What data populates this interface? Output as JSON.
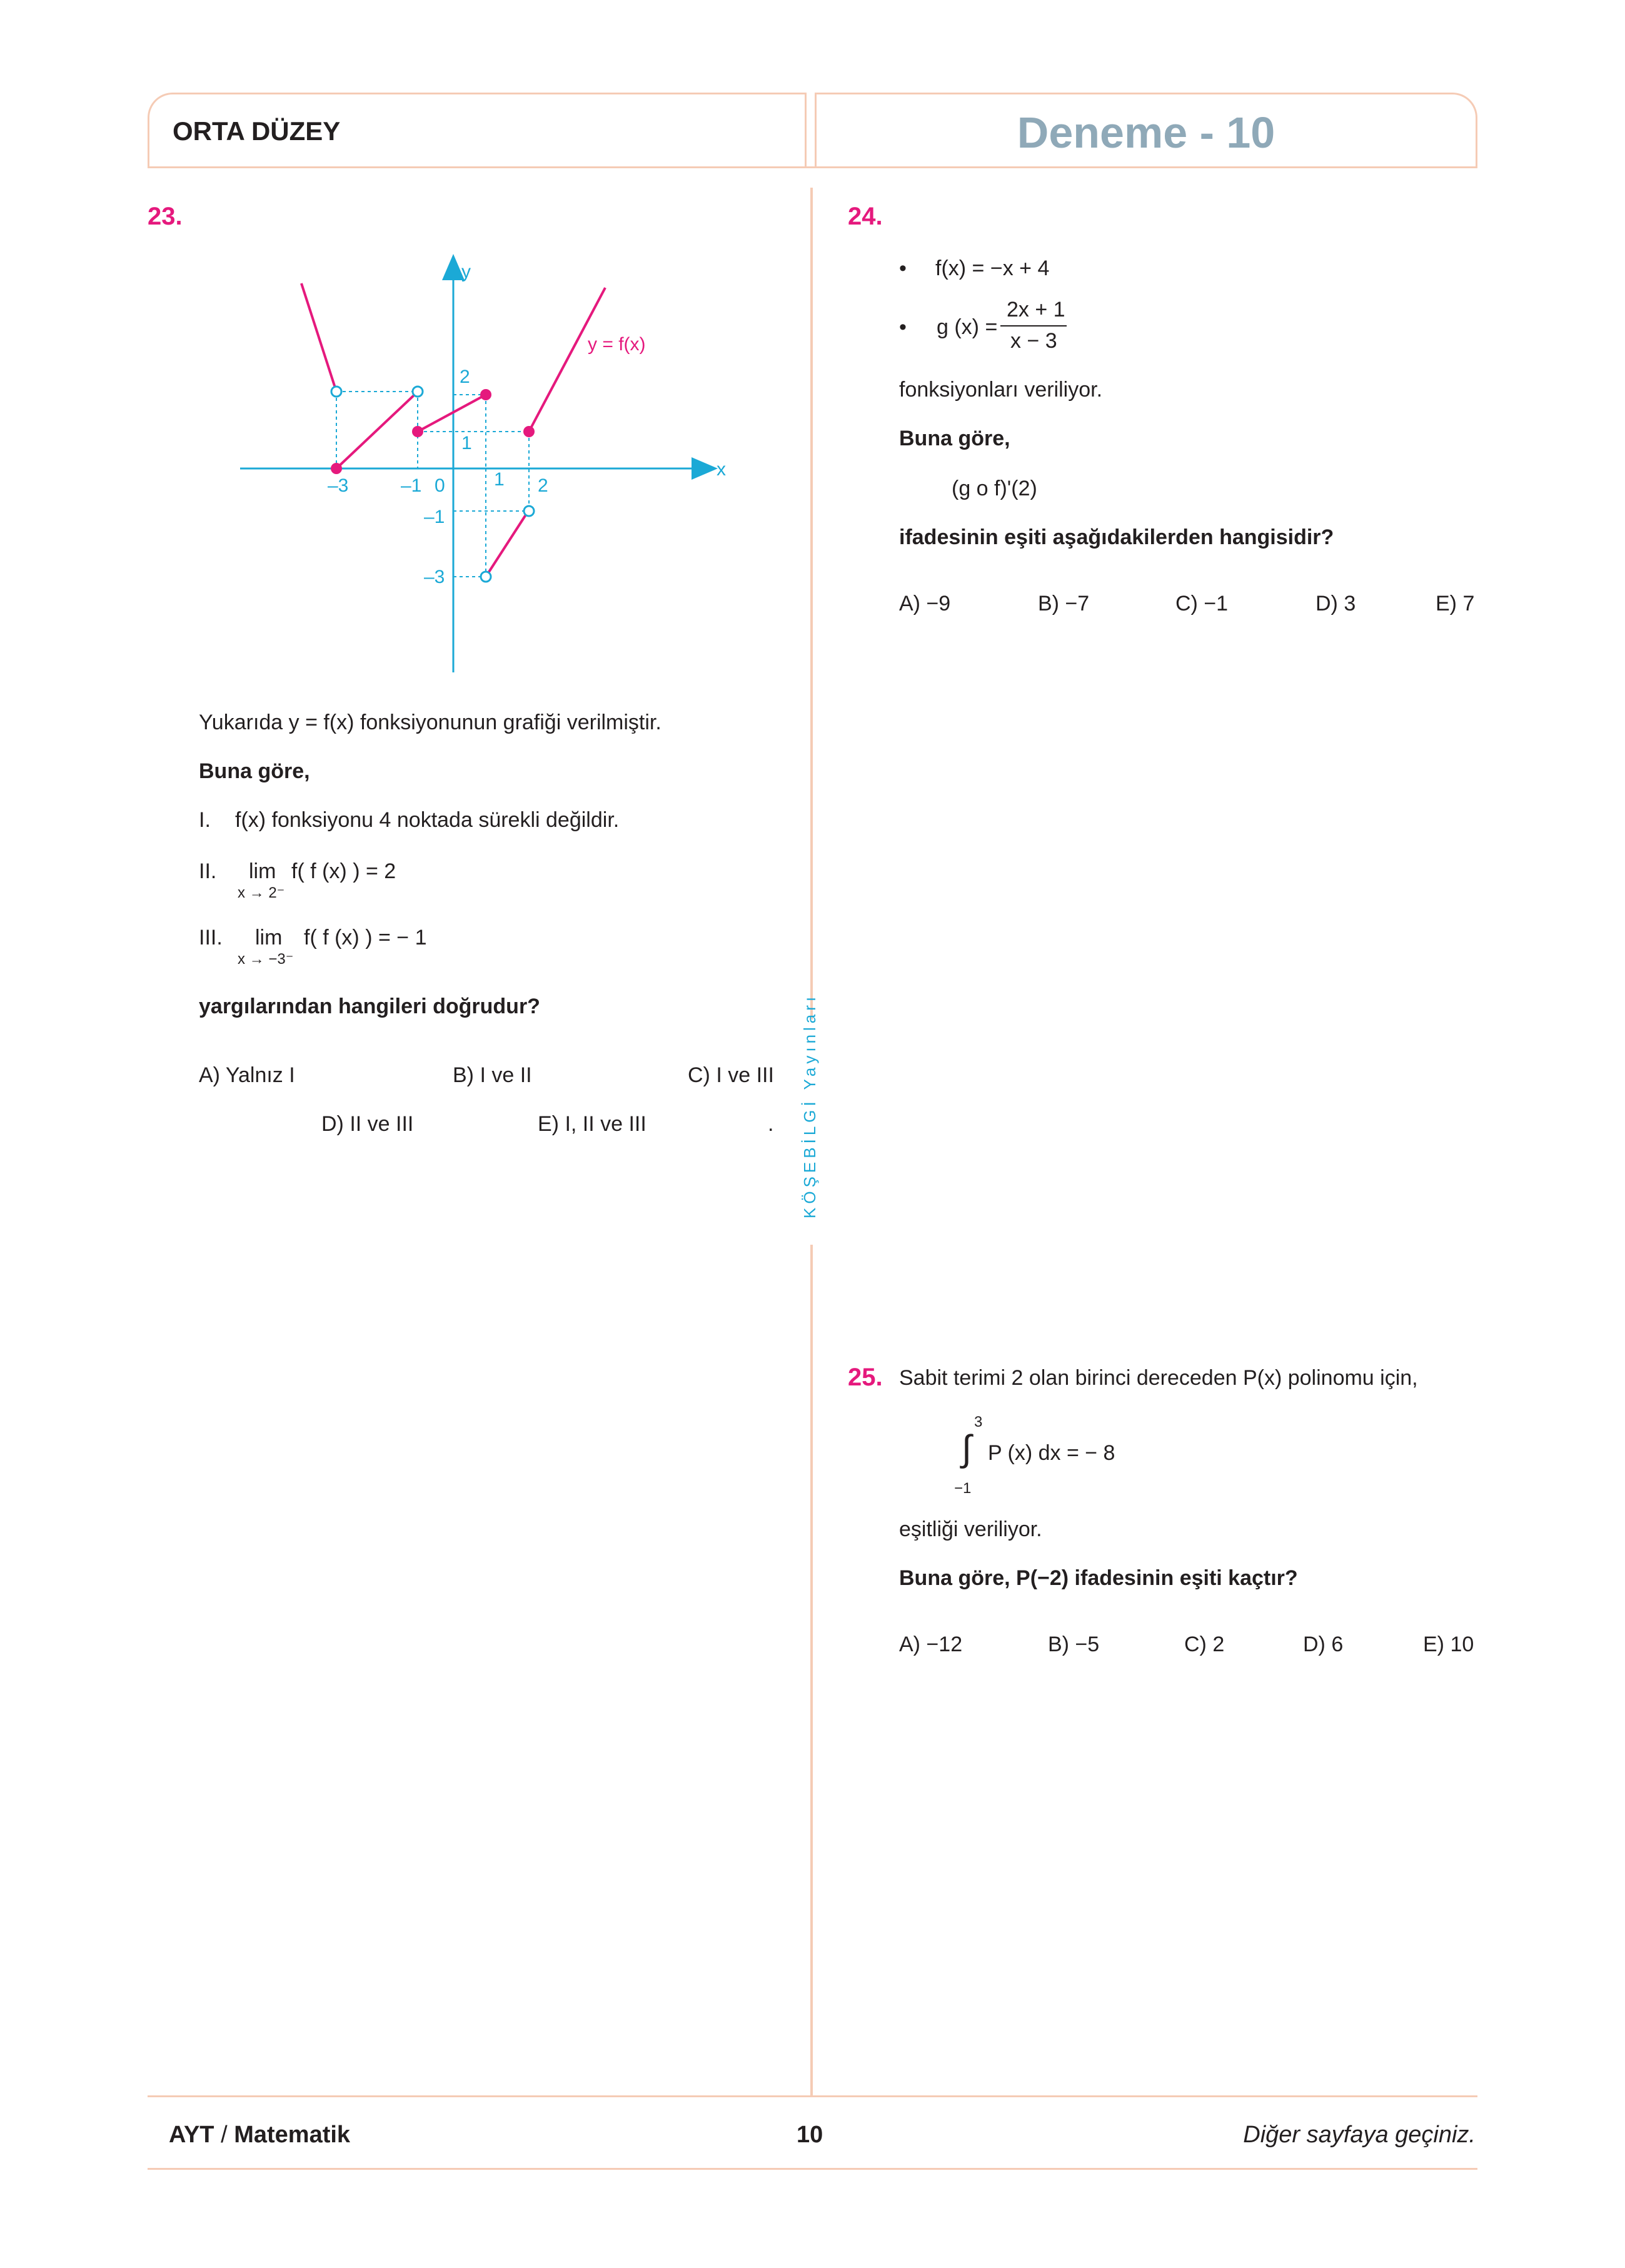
{
  "header": {
    "level": "ORTA DÜZEY",
    "title": "Deneme - 10"
  },
  "q23": {
    "number": "23.",
    "graph": {
      "axis_x": "x",
      "axis_y": "y",
      "curve_label": "y = f(x)",
      "ticks_x": [
        "–3",
        "–1",
        "0",
        "1",
        "2"
      ],
      "ticks_y": [
        "2",
        "1",
        "–1",
        "–3"
      ]
    },
    "intro": "Yukarıda y = f(x) fonksiyonunun grafiği verilmiştir.",
    "lead": "Buna göre,",
    "s1_num": "I.",
    "s1_text": "f(x) fonksiyonu 4 noktada sürekli değildir.",
    "s2_num": "II.",
    "s2_lim": "lim",
    "s2_sub": "x → 2⁻",
    "s2_expr": "f( f (x) ) = 2",
    "s3_num": "III.",
    "s3_lim": "lim",
    "s3_sub": "x → −3⁻",
    "s3_expr": "f( f (x) ) = − 1",
    "question": "yargılarından hangileri doğrudur?",
    "options": {
      "A": "A) Yalnız I",
      "B": "B) I ve II",
      "C": "C) I ve III",
      "D": "D) II ve III",
      "E": "E) I, II ve III",
      "dot": "."
    }
  },
  "q24": {
    "number": "24.",
    "bullet": "•",
    "f_def": "f(x) = −x + 4",
    "g_lhs": "g (x) =",
    "g_num": "2x + 1",
    "g_den": "x − 3",
    "given": "fonksiyonları veriliyor.",
    "lead": "Buna göre,",
    "expr": "(g o f)'(2)",
    "question": "ifadesinin eşiti aşağıdakilerden hangisidir?",
    "options": {
      "A": "A) −9",
      "B": "B) −7",
      "C": "C) −1",
      "D": "D) 3",
      "E": "E) 7"
    }
  },
  "q25": {
    "number": "25.",
    "intro": "Sabit terimi 2 olan birinci dereceden P(x) polinomu için,",
    "int_upper": "3",
    "int_sign": "∫",
    "int_lower": "−1",
    "int_expr": "P (x) dx = − 8",
    "given": "eşitliği veriliyor.",
    "question": "Buna göre, P(−2) ifadesinin eşiti kaçtır?",
    "options": {
      "A": "A) −12",
      "B": "B) −5",
      "C": "C) 2",
      "D": "D) 6",
      "E": "E) 10"
    }
  },
  "side_brand": "KÖŞEBİLGİ Yayınları",
  "footer": {
    "subject_a": "AYT",
    "subject_sep": " / ",
    "subject_b": "Matematik",
    "page": "10",
    "next": "Diğer sayfaya geçiniz."
  },
  "colors": {
    "accent": "#e5197d",
    "cyan": "#1ba9d6",
    "border": "#f5cbb5",
    "title": "#8fa9b8"
  }
}
